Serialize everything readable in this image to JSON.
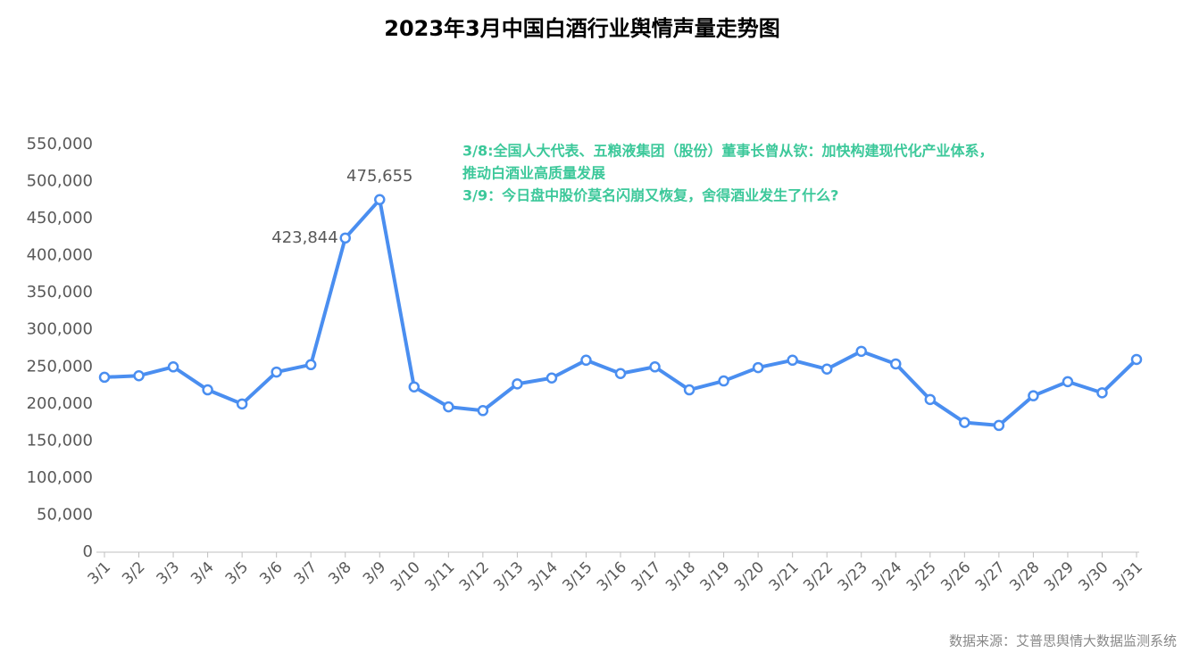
{
  "chart_data": {
    "type": "line",
    "title": "2023年3月中国白酒行业舆情声量走势图",
    "categories": [
      "3/1",
      "3/2",
      "3/3",
      "3/4",
      "3/5",
      "3/6",
      "3/7",
      "3/8",
      "3/9",
      "3/10",
      "3/11",
      "3/12",
      "3/13",
      "3/14",
      "3/15",
      "3/16",
      "3/17",
      "3/18",
      "3/19",
      "3/20",
      "3/21",
      "3/22",
      "3/23",
      "3/24",
      "3/25",
      "3/26",
      "3/27",
      "3/28",
      "3/29",
      "3/30",
      "3/31"
    ],
    "values": [
      236000,
      238000,
      250000,
      219000,
      200000,
      243000,
      253000,
      423844,
      475655,
      223000,
      196000,
      191000,
      227000,
      235000,
      259000,
      241000,
      250000,
      219000,
      231000,
      249000,
      259000,
      247000,
      271000,
      254000,
      206000,
      175000,
      171000,
      211000,
      230000,
      215000,
      260000
    ],
    "value_labels": [
      null,
      null,
      null,
      null,
      null,
      null,
      null,
      "423,844",
      "475,655",
      null,
      null,
      null,
      null,
      null,
      null,
      null,
      null,
      null,
      null,
      null,
      null,
      null,
      null,
      null,
      null,
      null,
      null,
      null,
      null,
      null,
      null
    ],
    "color": "#4a8ef0",
    "ylim": [
      0,
      550000
    ],
    "yticks": [
      0,
      {
        "value": 50000,
        "label": "50,000"
      },
      {
        "value": 100000,
        "label": "100,000"
      },
      {
        "value": 150000,
        "label": "150,000"
      },
      {
        "value": 200000,
        "label": "200,000"
      },
      {
        "value": 250000,
        "label": "250,000"
      },
      {
        "value": 300000,
        "label": "300,000"
      },
      {
        "value": 350000,
        "label": "350,000"
      },
      {
        "value": 400000,
        "label": "400,000"
      },
      {
        "value": 450000,
        "label": "450,000"
      },
      {
        "value": 500000,
        "label": "500,000"
      },
      {
        "value": 550000,
        "label": "550,000"
      }
    ],
    "grid": false,
    "annotation_lines": [
      "3/8:全国人大代表、五粮液集团（股份）董事长曾从钦：加快构建现代化产业体系，",
      "推动白酒业高质量发展",
      "3/9：今日盘中股价莫名闪崩又恢复，舍得酒业发生了什么?"
    ],
    "annotation_color": "#3cc89a",
    "source": "数据来源：艾普思舆情大数据监测系统"
  }
}
